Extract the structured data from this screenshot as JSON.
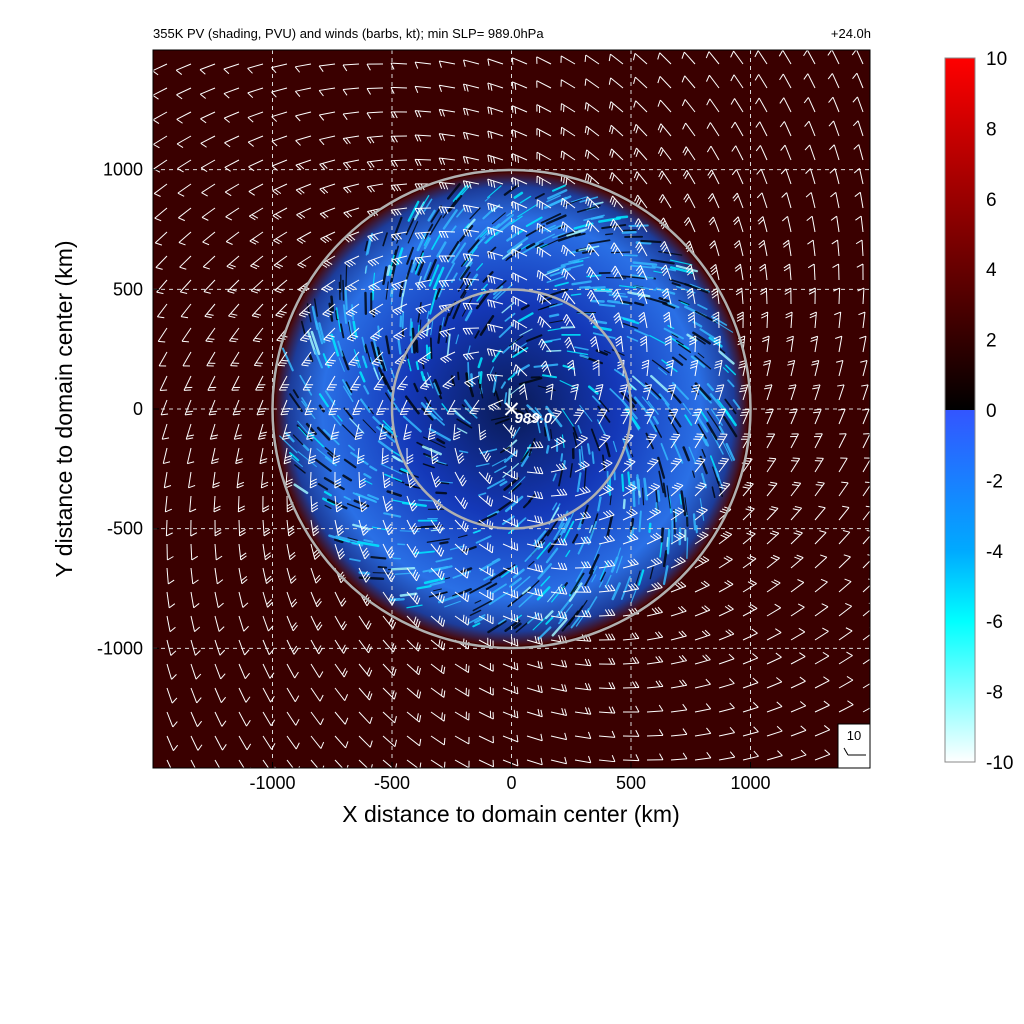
{
  "header": {
    "title": "355K PV (shading, PVU) and winds (barbs, kt); min SLP=  989.0hPa",
    "time_label": "+24.0h"
  },
  "chart_data": {
    "type": "heatmap",
    "title": "355K PV (shading, PVU) and winds (barbs, kt); min SLP=  989.0hPa",
    "xlabel": "X distance to domain center (km)",
    "ylabel": "Y distance to domain center (km)",
    "xlim": [
      -1500,
      1500
    ],
    "ylim": [
      -1500,
      1500
    ],
    "x_ticks": [
      -1000,
      -500,
      0,
      500,
      1000
    ],
    "y_ticks": [
      1000,
      500,
      0,
      -500,
      -1000
    ],
    "x_tick_labels": [
      "-1000",
      "-500",
      "0",
      "500",
      "1000"
    ],
    "y_tick_labels": [
      "1000",
      "500",
      "0",
      "-500",
      "-1000"
    ],
    "grid": true,
    "field": "355K potential vorticity (PVU)",
    "colorbar": {
      "range": [
        -10,
        10
      ],
      "ticks": [
        10,
        8,
        6,
        4,
        2,
        0,
        -2,
        -4,
        -6,
        -8,
        -10
      ],
      "tick_labels": [
        "10",
        "8",
        "6",
        "4",
        "2",
        "0",
        "-2",
        "-4",
        "-6",
        "-8",
        "-10"
      ],
      "colors": {
        "-10": "#ffffff",
        "-6": "#00ffff",
        "-2": "#3355ff",
        "0": "#000000",
        "5": "#800000",
        "10": "#ff0000"
      }
    },
    "range_rings_km": [
      500,
      1000
    ],
    "center_marker": {
      "x": 0,
      "y": 0,
      "label": "989.0"
    },
    "wind_barbs": {
      "units": "kt",
      "reference_label": "10"
    },
    "colors": {
      "ring": "#b0b0b0",
      "barb": "#ffffff",
      "background_pv": "#3a0000"
    }
  }
}
